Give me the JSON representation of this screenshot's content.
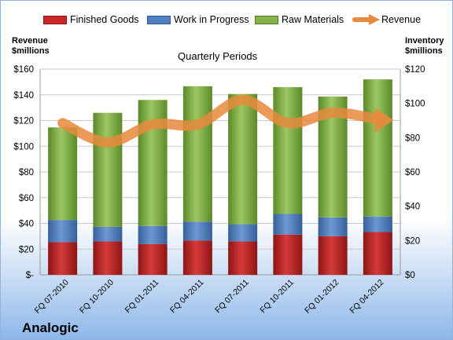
{
  "company": "Analogic",
  "chart_data": {
    "type": "bar",
    "stacked": true,
    "title": "Quarterly Periods",
    "ylabel_left": "Revenue\n$millions",
    "ylabel_right": "Inventory\n$millions",
    "categories": [
      "FQ 07-2010",
      "FQ 10-2010",
      "FQ 01-2011",
      "FQ 04-2011",
      "FQ 07-2011",
      "FQ 10-2011",
      "FQ 01-2012",
      "FQ 04-2012"
    ],
    "series": [
      {
        "name": "Finished Goods",
        "axis": "right",
        "color": "#cc2626",
        "values": [
          19,
          19.5,
          18,
          20,
          19.5,
          23.5,
          22.5,
          25
        ]
      },
      {
        "name": "Work in Progress",
        "axis": "right",
        "color": "#4f7fc0",
        "values": [
          13,
          8.5,
          10.5,
          11,
          10,
          12,
          11,
          9
        ]
      },
      {
        "name": "Raw Materials",
        "axis": "right",
        "color": "#86b24a",
        "values": [
          54,
          66.5,
          73.5,
          79,
          76,
          74,
          70.5,
          80
        ]
      }
    ],
    "line_series": {
      "name": "Revenue",
      "axis": "left",
      "color": "#e88a3c",
      "values": [
        118,
        103,
        117,
        117,
        136,
        118,
        126,
        121
      ]
    },
    "ylim_left": [
      0,
      160
    ],
    "yticks_left": [
      "$-",
      "$20",
      "$40",
      "$60",
      "$80",
      "$100",
      "$120",
      "$140",
      "$160"
    ],
    "ylim_right": [
      0,
      120
    ],
    "yticks_right": [
      "$0",
      "$20",
      "$40",
      "$60",
      "$80",
      "$100",
      "$120"
    ],
    "grid": true,
    "legend_position": "top"
  }
}
